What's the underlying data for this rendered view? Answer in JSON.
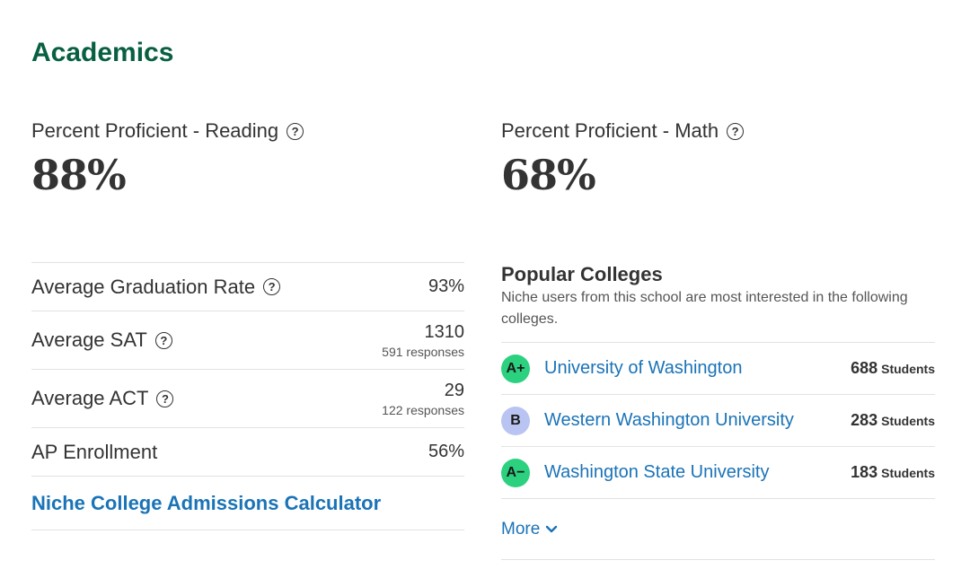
{
  "section": {
    "title": "Academics"
  },
  "reading": {
    "label": "Percent Proficient - Reading",
    "value": "88%"
  },
  "math": {
    "label": "Percent Proficient - Math",
    "value": "68%"
  },
  "help_glyph": "?",
  "facts": {
    "graduation": {
      "label": "Average Graduation Rate",
      "value": "93%"
    },
    "sat": {
      "label": "Average SAT",
      "value": "1310",
      "responses": "591 responses"
    },
    "act": {
      "label": "Average ACT",
      "value": "29",
      "responses": "122 responses"
    },
    "ap": {
      "label": "AP Enrollment",
      "value": "56%"
    }
  },
  "calculator_link": "Niche College Admissions Calculator",
  "popular_colleges": {
    "title": "Popular Colleges",
    "description": "Niche users from this school are most interested in the following colleges.",
    "items": [
      {
        "grade": "A+",
        "grade_color": "#2bd17e",
        "name": "University of Washington",
        "count": "688",
        "unit": "Students"
      },
      {
        "grade": "B",
        "grade_color": "#b9c4f2",
        "name": "Western Washington University",
        "count": "283",
        "unit": "Students"
      },
      {
        "grade": "A−",
        "grade_color": "#2bd17e",
        "name": "Washington State University",
        "count": "183",
        "unit": "Students"
      }
    ],
    "more_label": "More"
  },
  "colors": {
    "heading": "#086040",
    "link": "#1a73b7",
    "grade_a": "#2bd17e",
    "grade_b": "#b9c4f2"
  },
  "icons": {
    "help": "help-circle-icon",
    "more": "chevron-down-icon"
  }
}
